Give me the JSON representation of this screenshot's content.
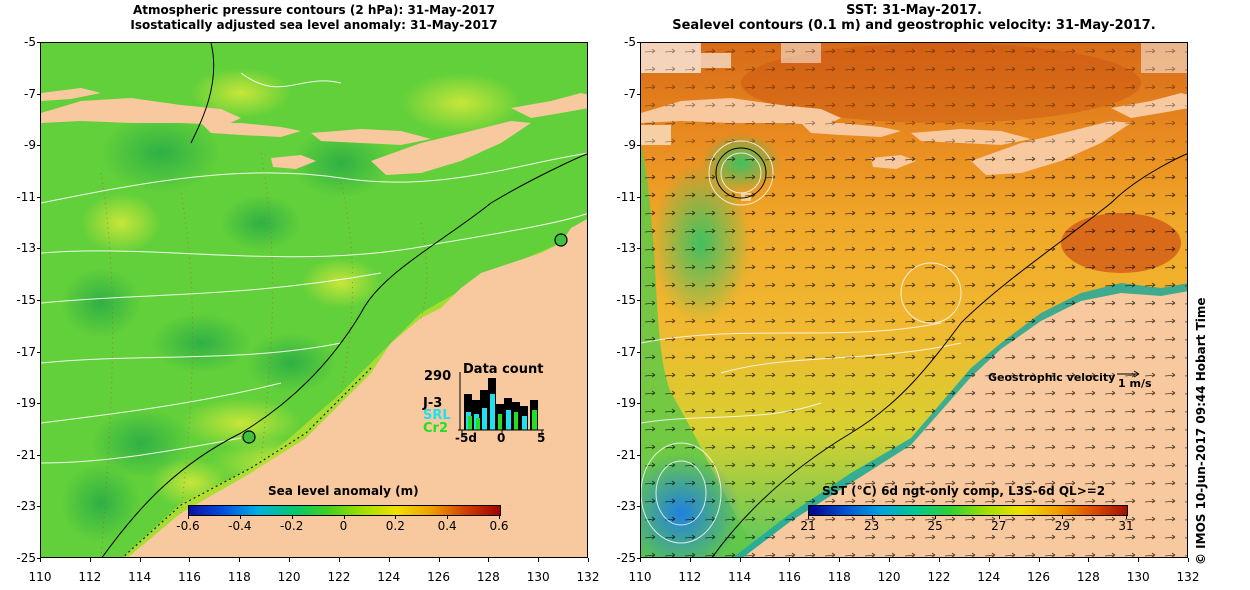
{
  "left_panel": {
    "title_line1": "Atmospheric pressure contours (2 hPa): 31-May-2017",
    "title_line2": "Isostatically adjusted sea level anomaly: 31-May-2017",
    "colorbar_label": "Sea level anomaly (m)",
    "colorbar_ticks": [
      "-0.6",
      "-0.4",
      "-0.2",
      "0",
      "0.2",
      "0.4",
      "0.6"
    ],
    "colorbar_colors": [
      "#1010a0",
      "#0050e0",
      "#00b0e0",
      "#00c870",
      "#40d020",
      "#a0e000",
      "#f0e000",
      "#f0a000",
      "#d04000",
      "#a00000"
    ],
    "inset": {
      "count_value": "290",
      "title": "Data count",
      "series": [
        {
          "name": "J-3",
          "color": "#000000"
        },
        {
          "name": "SRL",
          "color": "#20e0f0"
        },
        {
          "name": "Cr2",
          "color": "#20e020"
        }
      ],
      "x_ticks": [
        "-5d",
        "0",
        "5"
      ]
    }
  },
  "right_panel": {
    "title_line1": "SST: 31-May-2017.",
    "title_line2": "Sealevel contours (0.1 m) and geostrophic velocity: 31-May-2017.",
    "colorbar_label": "SST (°C) 6d ngt-only comp, L3S-6d QL>=2",
    "colorbar_ticks": [
      "21",
      "23",
      "25",
      "27",
      "29",
      "31"
    ],
    "colorbar_colors": [
      "#00008a",
      "#0050d0",
      "#00a0e0",
      "#00c890",
      "#30d030",
      "#a0e000",
      "#f0e000",
      "#f0a000",
      "#e05000",
      "#a01000"
    ],
    "geo_label": "Geostrophic velocity",
    "geo_unit": "1 m/s"
  },
  "y_ticks": [
    "-5",
    "-7",
    "-9",
    "-11",
    "-13",
    "-15",
    "-17",
    "-19",
    "-21",
    "-23",
    "-25"
  ],
  "x_ticks": [
    "110",
    "112",
    "114",
    "116",
    "118",
    "120",
    "122",
    "124",
    "126",
    "128",
    "130",
    "132"
  ],
  "credit": "© IMOS 10-Jun-2017 09:44 Hobart Time",
  "colors": {
    "land": "#f8c89e",
    "ocean_green": "#4cc83a",
    "ocean_yellow": "#c8e63a",
    "sst_orange": "#f0a020",
    "sst_red": "#e06010"
  }
}
